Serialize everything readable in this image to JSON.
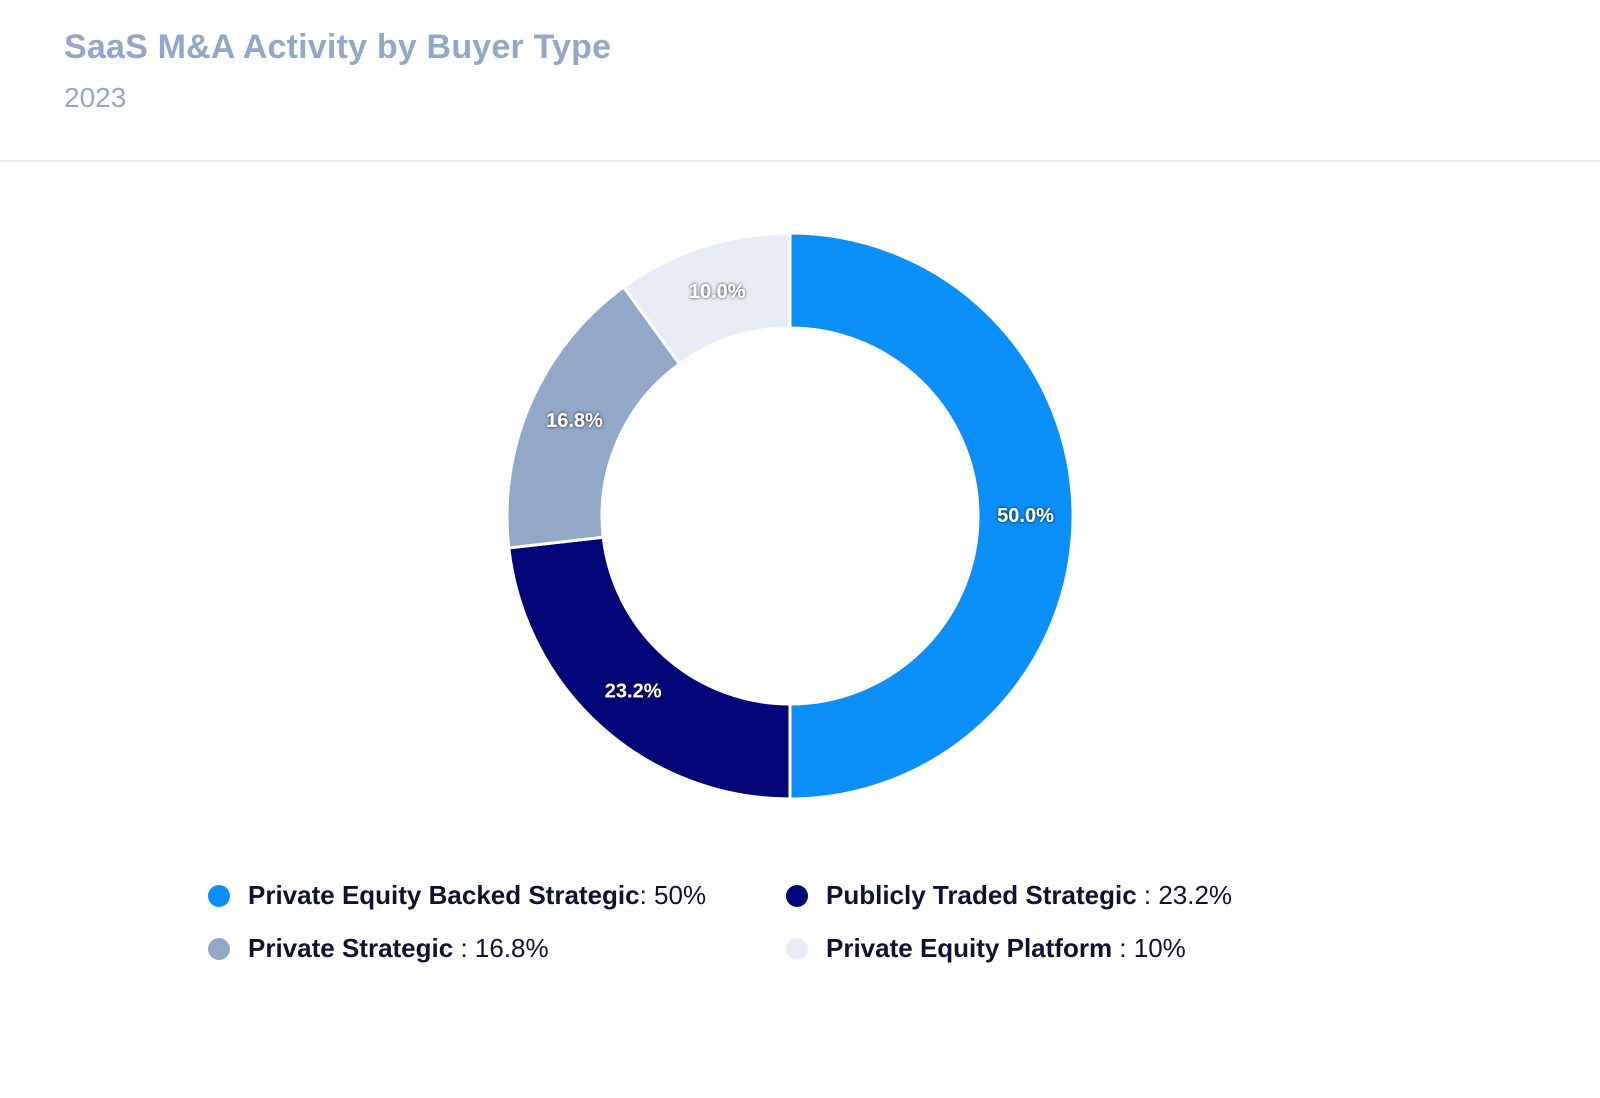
{
  "header": {
    "title": "SaaS M&A Activity by Buyer Type",
    "subtitle": "2023"
  },
  "chart_data": {
    "type": "pie",
    "variant": "donut",
    "title": "SaaS M&A Activity by Buyer Type",
    "subtitle": "2023",
    "legend_position": "bottom",
    "slices": [
      {
        "name": "Private Equity Backed Strategic",
        "value": 50.0,
        "label": "50.0%",
        "legend_value": ": 50%",
        "color": "#0a8ef7"
      },
      {
        "name": "Publicly Traded Strategic",
        "value": 23.2,
        "label": "23.2%",
        "legend_value": " : 23.2%",
        "color": "#030478"
      },
      {
        "name": "Private Strategic",
        "value": 16.8,
        "label": "16.8%",
        "legend_value": " : 16.8%",
        "color": "#92a8c9"
      },
      {
        "name": "Private Equity Platform",
        "value": 10.0,
        "label": "10.0%",
        "legend_value": " : 10%",
        "color": "#e8edf5"
      }
    ]
  }
}
